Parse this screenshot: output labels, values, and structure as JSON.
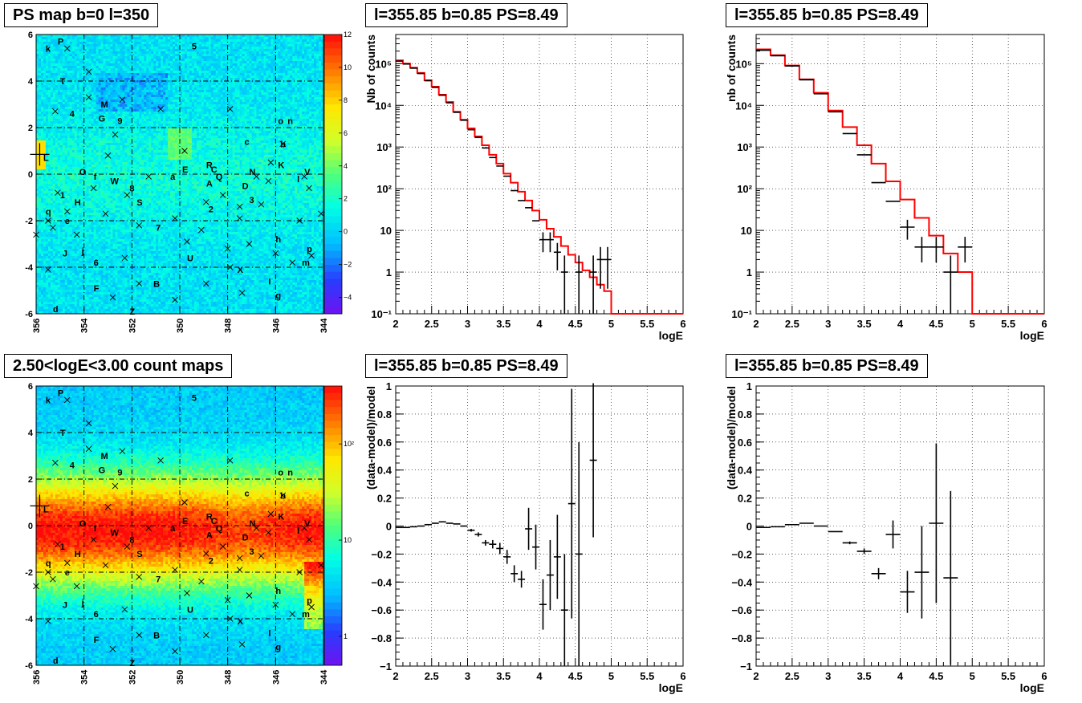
{
  "colors": {
    "model_line": "#ff0000",
    "data_points": "#000000",
    "grid": "#000000",
    "frame": "#000000"
  },
  "icons": {
    "source_marker": "x-cross-icon",
    "peak_marker": "plus-cross-icon"
  },
  "maps": [
    {
      "title": "PS map b=0 l=350",
      "type": "heatmap",
      "palette": "rainbow",
      "x_ticks": [
        "356",
        "354",
        "352",
        "350",
        "348",
        "346",
        "344"
      ],
      "y_ticks": [
        "6",
        "4",
        "2",
        "0",
        "-2",
        "-4",
        "-6"
      ],
      "xlim": [
        356,
        344
      ],
      "ylim": [
        -6,
        6
      ],
      "colorbar_scale": "linear",
      "colorbar_range": [
        -5,
        12
      ],
      "colorbar_ticks": [
        "12",
        "10",
        "8",
        "6",
        "4",
        "2",
        "0",
        "−2",
        "−4"
      ],
      "value_description": "mostly 0–3 background, diffuse patches near b=0"
    },
    {
      "title": "2.50<logE<3.00 count maps",
      "type": "heatmap",
      "palette": "rainbow",
      "x_ticks": [
        "356",
        "354",
        "352",
        "350",
        "348",
        "346",
        "344"
      ],
      "y_ticks": [
        "6",
        "4",
        "2",
        "0",
        "-2",
        "-4",
        "-6"
      ],
      "xlim": [
        356,
        344
      ],
      "ylim": [
        -6,
        6
      ],
      "colorbar_scale": "log",
      "colorbar_range": [
        0.5,
        400
      ],
      "colorbar_ticks": [
        "10²",
        "10",
        "1"
      ],
      "value_description": "counts peak along the galactic plane b=0"
    }
  ],
  "map_labels": [
    {
      "t": "k",
      "l": 355.6,
      "b": 5.4
    },
    {
      "t": "P",
      "l": 355.1,
      "b": 5.7
    },
    {
      "t": "5",
      "l": 349.5,
      "b": 5.5
    },
    {
      "t": "T",
      "l": 355.0,
      "b": 4.0
    },
    {
      "t": "M",
      "l": 353.3,
      "b": 3.0
    },
    {
      "t": "4",
      "l": 354.6,
      "b": 2.6
    },
    {
      "t": "G",
      "l": 353.4,
      "b": 2.4
    },
    {
      "t": "9",
      "l": 352.6,
      "b": 2.3
    },
    {
      "t": "o",
      "l": 345.9,
      "b": 2.3
    },
    {
      "t": "n",
      "l": 345.5,
      "b": 2.3
    },
    {
      "t": "c",
      "l": 347.3,
      "b": 1.4
    },
    {
      "t": "b",
      "l": 345.8,
      "b": 1.3
    },
    {
      "t": "L",
      "l": 355.7,
      "b": 0.7
    },
    {
      "t": "K",
      "l": 345.9,
      "b": 0.4
    },
    {
      "t": "R",
      "l": 348.9,
      "b": 0.4
    },
    {
      "t": "C",
      "l": 348.7,
      "b": 0.2
    },
    {
      "t": "E",
      "l": 349.9,
      "b": 0.2
    },
    {
      "t": "O",
      "l": 354.2,
      "b": 0.1
    },
    {
      "t": "f",
      "l": 353.6,
      "b": -0.1
    },
    {
      "t": "N",
      "l": 347.1,
      "b": 0.1
    },
    {
      "t": "Q",
      "l": 348.5,
      "b": -0.1
    },
    {
      "t": "a",
      "l": 350.4,
      "b": -0.1
    },
    {
      "t": "V",
      "l": 344.8,
      "b": 0.1
    },
    {
      "t": "l",
      "l": 345.1,
      "b": -0.2
    },
    {
      "t": "W",
      "l": 352.9,
      "b": -0.3
    },
    {
      "t": "A",
      "l": 348.9,
      "b": -0.4
    },
    {
      "t": "D",
      "l": 347.4,
      "b": -0.5
    },
    {
      "t": "8",
      "l": 352.1,
      "b": -0.6
    },
    {
      "t": "1",
      "l": 355.0,
      "b": -0.9
    },
    {
      "t": "H",
      "l": 354.4,
      "b": -1.2
    },
    {
      "t": "S",
      "l": 351.8,
      "b": -1.2
    },
    {
      "t": "3",
      "l": 347.1,
      "b": -1.1
    },
    {
      "t": "2",
      "l": 348.8,
      "b": -1.5
    },
    {
      "t": "q",
      "l": 355.6,
      "b": -1.6
    },
    {
      "t": "e",
      "l": 354.8,
      "b": -2.0
    },
    {
      "t": "7",
      "l": 351.0,
      "b": -2.3
    },
    {
      "t": "h",
      "l": 346.0,
      "b": -2.8
    },
    {
      "t": "p",
      "l": 344.7,
      "b": -3.2
    },
    {
      "t": "J",
      "l": 354.9,
      "b": -3.4
    },
    {
      "t": "j",
      "l": 354.1,
      "b": -3.3
    },
    {
      "t": "U",
      "l": 349.7,
      "b": -3.6
    },
    {
      "t": "6",
      "l": 353.6,
      "b": -3.8
    },
    {
      "t": "m",
      "l": 344.9,
      "b": -3.8
    },
    {
      "t": "X",
      "l": 347.6,
      "b": -4.1
    },
    {
      "t": "I",
      "l": 346.3,
      "b": -4.6
    },
    {
      "t": "B",
      "l": 351.1,
      "b": -4.7
    },
    {
      "t": "F",
      "l": 353.6,
      "b": -4.9
    },
    {
      "t": "g",
      "l": 346.0,
      "b": -5.2
    },
    {
      "t": "d",
      "l": 355.3,
      "b": -5.8
    },
    {
      "t": "Z",
      "l": 352.1,
      "b": -5.9
    }
  ],
  "map_crosses": [
    [
      354.7,
      5.4
    ],
    [
      353.8,
      4.4
    ],
    [
      355.2,
      2.7
    ],
    [
      353.8,
      3.3
    ],
    [
      352.4,
      3.2
    ],
    [
      350.8,
      2.8
    ],
    [
      347.9,
      2.8
    ],
    [
      353.0,
      0.8
    ],
    [
      352.7,
      1.7
    ],
    [
      349.8,
      1.0
    ],
    [
      345.7,
      1.3
    ],
    [
      346.2,
      0.5
    ],
    [
      344.8,
      -0.1
    ],
    [
      346.3,
      -0.3
    ],
    [
      351.3,
      -0.1
    ],
    [
      350.2,
      -1.9
    ],
    [
      348.9,
      -1.2
    ],
    [
      352.2,
      -0.9
    ],
    [
      353.6,
      -0.6
    ],
    [
      355.1,
      -0.8
    ],
    [
      354.7,
      -1.6
    ],
    [
      355.5,
      -2.0
    ],
    [
      353.1,
      -1.7
    ],
    [
      351.7,
      -2.2
    ],
    [
      349.1,
      -2.4
    ],
    [
      347.5,
      -1.9
    ],
    [
      347.5,
      -1.4
    ],
    [
      346.6,
      -1.3
    ],
    [
      344.1,
      -1.7
    ],
    [
      345.0,
      -2.0
    ],
    [
      356.0,
      -2.6
    ],
    [
      355.3,
      -2.3
    ],
    [
      347.1,
      -3.0
    ],
    [
      348.0,
      -3.2
    ],
    [
      349.7,
      -2.9
    ],
    [
      344.5,
      -3.5
    ],
    [
      345.3,
      -3.8
    ],
    [
      346.0,
      -3.4
    ],
    [
      354.3,
      -2.6
    ],
    [
      355.5,
      -4.1
    ],
    [
      352.3,
      -3.6
    ],
    [
      351.7,
      -4.7
    ],
    [
      348.9,
      -4.7
    ],
    [
      347.4,
      -5.1
    ],
    [
      347.9,
      -4.0
    ],
    [
      352.8,
      -5.3
    ],
    [
      350.2,
      -5.4
    ],
    [
      344.6,
      -0.6
    ],
    [
      348.2,
      -0.9
    ],
    [
      346.8,
      -0.1
    ]
  ],
  "chart_data": [
    {
      "type": "line",
      "title": "l=355.85 b=0.85 PS=8.49",
      "xlabel": "logE",
      "ylabel": "Nb of counts",
      "xlim": [
        2,
        6
      ],
      "ylim": [
        0.1,
        500000
      ],
      "yscale": "log",
      "grid": true,
      "x_ticks": [
        "2",
        "2.5",
        "3",
        "3.5",
        "4",
        "4.5",
        "5",
        "5.5",
        "6"
      ],
      "y_ticks": [
        {
          "v": 0.1,
          "t": "10⁻¹"
        },
        {
          "v": 1,
          "t": "1"
        },
        {
          "v": 10,
          "t": "10"
        },
        {
          "v": 100,
          "t": "10²"
        },
        {
          "v": 1000,
          "t": "10³"
        },
        {
          "v": 10000,
          "t": "10⁴"
        },
        {
          "v": 100000,
          "t": "10⁵"
        }
      ],
      "series": [
        {
          "style": "histogram",
          "edges": [
            2.0,
            2.1,
            2.2,
            2.3,
            2.4,
            2.5,
            2.6,
            2.7,
            2.8,
            2.9,
            3.0,
            3.1,
            3.2,
            3.3,
            3.4,
            3.5,
            3.6,
            3.7,
            3.8,
            3.9,
            4.0,
            4.1,
            4.2,
            4.3,
            4.4,
            4.5,
            4.6,
            4.7,
            4.8,
            4.9,
            5.0,
            5.1,
            5.2,
            5.3,
            5.4,
            5.5,
            5.6,
            5.7,
            5.8,
            5.9,
            6.0
          ],
          "values": [
            120000,
            100000,
            80000,
            60000,
            40000,
            28000,
            18000,
            12000,
            7000,
            4500,
            2800,
            1800,
            1100,
            650,
            400,
            230,
            140,
            85,
            52,
            30,
            18,
            11,
            7,
            4.2,
            2.6,
            1.7,
            1.1,
            0.75,
            0.5,
            0.35,
            0.1,
            0.1,
            0.1,
            0.1,
            0.1,
            0.1,
            0.1,
            0.1,
            0.1,
            0.1
          ]
        },
        {
          "style": "points",
          "x": [
            2.05,
            2.15,
            2.25,
            2.35,
            2.45,
            2.55,
            2.65,
            2.75,
            2.85,
            2.95,
            3.05,
            3.15,
            3.25,
            3.35,
            3.45,
            3.55,
            3.65,
            3.75,
            3.85,
            3.95,
            4.05,
            4.15,
            4.25,
            4.35,
            4.55,
            4.75,
            4.85,
            4.95
          ],
          "y": [
            115000,
            98000,
            78000,
            58000,
            39000,
            27000,
            17500,
            11500,
            6800,
            4400,
            2600,
            1700,
            950,
            560,
            350,
            200,
            90,
            52,
            35,
            17,
            6,
            6,
            3,
            1,
            1,
            1,
            2,
            2
          ],
          "err_low": [
            0,
            0,
            0,
            0,
            0,
            0,
            0,
            0,
            0,
            0,
            0,
            0,
            0,
            0,
            0,
            0,
            0,
            0,
            0,
            0,
            3,
            3,
            1.9,
            0.9,
            0.9,
            0.9,
            1.6,
            1.6
          ],
          "err_high": [
            0,
            0,
            0,
            0,
            0,
            0,
            0,
            0,
            0,
            0,
            0,
            0,
            0,
            0,
            0,
            0,
            0,
            0,
            0,
            0,
            3,
            3,
            2,
            1.5,
            1.5,
            1.5,
            2,
            2
          ]
        }
      ]
    },
    {
      "type": "line",
      "title": "l=355.85 b=0.85 PS=8.49",
      "xlabel": "logE",
      "ylabel": "nb of counts",
      "xlim": [
        2,
        6
      ],
      "ylim": [
        0.1,
        500000
      ],
      "yscale": "log",
      "grid": true,
      "x_ticks": [
        "2",
        "2.5",
        "3",
        "3.5",
        "4",
        "4.5",
        "5",
        "5.5",
        "6"
      ],
      "y_ticks": [
        {
          "v": 0.1,
          "t": "10⁻¹"
        },
        {
          "v": 1,
          "t": "1"
        },
        {
          "v": 10,
          "t": "10"
        },
        {
          "v": 100,
          "t": "10²"
        },
        {
          "v": 1000,
          "t": "10³"
        },
        {
          "v": 10000,
          "t": "10⁴"
        },
        {
          "v": 100000,
          "t": "10⁵"
        }
      ],
      "series": [
        {
          "style": "histogram",
          "edges": [
            2.0,
            2.2,
            2.4,
            2.6,
            2.8,
            3.0,
            3.2,
            3.4,
            3.6,
            3.8,
            4.0,
            4.2,
            4.4,
            4.6,
            4.8,
            5.0,
            5.2,
            5.4,
            5.6,
            5.8,
            6.0
          ],
          "values": [
            220000,
            160000,
            90000,
            42000,
            20000,
            7500,
            3000,
            1100,
            400,
            150,
            55,
            20,
            7.5,
            2.8,
            1.0,
            0.1,
            0.1,
            0.1,
            0.1,
            0.1
          ]
        },
        {
          "style": "points",
          "x": [
            2.1,
            2.3,
            2.5,
            2.7,
            2.9,
            3.1,
            3.3,
            3.5,
            3.7,
            3.9,
            4.1,
            4.3,
            4.5,
            4.7,
            4.9
          ],
          "y": [
            210000,
            155000,
            88000,
            41000,
            19000,
            7000,
            2100,
            650,
            140,
            50,
            12,
            4,
            4,
            1,
            4
          ],
          "err_low": [
            0,
            0,
            0,
            0,
            0,
            0,
            0,
            0,
            0,
            0,
            6,
            2.3,
            2.3,
            0.9,
            2.3
          ],
          "err_high": [
            0,
            0,
            0,
            0,
            0,
            0,
            0,
            0,
            0,
            0,
            6,
            3,
            3,
            1.5,
            3
          ]
        }
      ]
    },
    {
      "type": "scatter",
      "title": "l=355.85 b=0.85 PS=8.49",
      "xlabel": "logE",
      "ylabel": "(data-model)/model",
      "xlim": [
        2,
        6
      ],
      "ylim": [
        -1,
        1
      ],
      "yscale": "linear",
      "grid": true,
      "x_ticks": [
        "2",
        "2.5",
        "3",
        "3.5",
        "4",
        "4.5",
        "5",
        "5.5",
        "6"
      ],
      "y_ticks": [
        {
          "v": -1,
          "t": "−1"
        },
        {
          "v": -0.8,
          "t": "−0.8"
        },
        {
          "v": -0.6,
          "t": "−0.6"
        },
        {
          "v": -0.4,
          "t": "−0.4"
        },
        {
          "v": -0.2,
          "t": "−0.2"
        },
        {
          "v": 0,
          "t": "0"
        },
        {
          "v": 0.2,
          "t": "0.2"
        },
        {
          "v": 0.4,
          "t": "0.4"
        },
        {
          "v": 0.6,
          "t": "0.6"
        },
        {
          "v": 0.8,
          "t": "0.8"
        },
        {
          "v": 1,
          "t": "1"
        }
      ],
      "series": [
        {
          "style": "points",
          "bin_halfwidth": 0.05,
          "x": [
            2.05,
            2.15,
            2.25,
            2.35,
            2.45,
            2.55,
            2.65,
            2.75,
            2.85,
            2.95,
            3.05,
            3.15,
            3.25,
            3.35,
            3.45,
            3.55,
            3.65,
            3.75,
            3.85,
            3.95,
            4.05,
            4.15,
            4.25,
            4.35,
            4.45,
            4.55,
            4.75
          ],
          "y": [
            -0.01,
            -0.01,
            -0.005,
            0,
            0.01,
            0.02,
            0.03,
            0.02,
            0.015,
            0,
            -0.03,
            -0.06,
            -0.12,
            -0.13,
            -0.16,
            -0.22,
            -0.34,
            -0.38,
            -0.02,
            -0.15,
            -0.56,
            -0.35,
            -0.22,
            -0.6,
            0.16,
            -0.2,
            0.47
          ],
          "err": [
            0,
            0,
            0,
            0,
            0,
            0,
            0,
            0,
            0,
            0,
            0.01,
            0.015,
            0.02,
            0.03,
            0.04,
            0.05,
            0.06,
            0.06,
            0.15,
            0.16,
            0.18,
            0.25,
            0.3,
            0.4,
            0.82,
            0.8,
            0.55
          ]
        }
      ]
    },
    {
      "type": "scatter",
      "title": "l=355.85 b=0.85 PS=8.49",
      "xlabel": "logE",
      "ylabel": "(data-model)/model",
      "xlim": [
        2,
        6
      ],
      "ylim": [
        -1,
        1
      ],
      "yscale": "linear",
      "grid": true,
      "x_ticks": [
        "2",
        "2.5",
        "3",
        "3.5",
        "4",
        "4.5",
        "5",
        "5.5",
        "6"
      ],
      "y_ticks": [
        {
          "v": -1,
          "t": "−1"
        },
        {
          "v": -0.8,
          "t": "−0.8"
        },
        {
          "v": -0.6,
          "t": "−0.6"
        },
        {
          "v": -0.4,
          "t": "−0.4"
        },
        {
          "v": -0.2,
          "t": "−0.2"
        },
        {
          "v": 0,
          "t": "0"
        },
        {
          "v": 0.2,
          "t": "0.2"
        },
        {
          "v": 0.4,
          "t": "0.4"
        },
        {
          "v": 0.6,
          "t": "0.6"
        },
        {
          "v": 0.8,
          "t": "0.8"
        },
        {
          "v": 1,
          "t": "1"
        }
      ],
      "series": [
        {
          "style": "points",
          "bin_halfwidth": 0.1,
          "x": [
            2.1,
            2.3,
            2.5,
            2.7,
            2.9,
            3.1,
            3.3,
            3.5,
            3.7,
            3.9,
            4.1,
            4.3,
            4.5,
            4.7
          ],
          "y": [
            -0.01,
            -0.005,
            0.01,
            0.02,
            0,
            -0.04,
            -0.12,
            -0.18,
            -0.34,
            -0.06,
            -0.47,
            -0.33,
            0.02,
            -0.37
          ],
          "err": [
            0,
            0,
            0,
            0,
            0,
            0,
            0.01,
            0.02,
            0.04,
            0.1,
            0.15,
            0.33,
            0.57,
            0.62
          ]
        }
      ]
    }
  ]
}
